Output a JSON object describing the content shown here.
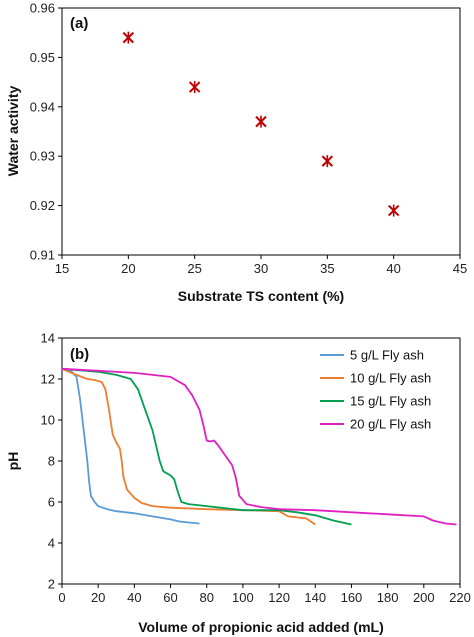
{
  "chart_data": [
    {
      "type": "scatter",
      "panel_label": "(a)",
      "xlabel": "Substrate TS content (%)",
      "ylabel": "Water activity",
      "xlim": [
        15,
        45
      ],
      "ylim": [
        0.91,
        0.96
      ],
      "xticks": [
        "15",
        "20",
        "25",
        "30",
        "35",
        "40",
        "45"
      ],
      "yticks": [
        "0.91",
        "0.92",
        "0.93",
        "0.94",
        "0.95",
        "0.96"
      ],
      "grid": false,
      "marker_color": "#c00000",
      "series": [
        {
          "points": [
            [
              20,
              0.954
            ],
            [
              25,
              0.944
            ],
            [
              30,
              0.937
            ],
            [
              35,
              0.929
            ],
            [
              40,
              0.919
            ]
          ]
        }
      ]
    },
    {
      "type": "line",
      "panel_label": "(b)",
      "xlabel": "Volume of propionic acid added (mL)",
      "ylabel": "pH",
      "xlim": [
        0,
        220
      ],
      "ylim": [
        2,
        14
      ],
      "xticks": [
        "0",
        "20",
        "40",
        "60",
        "80",
        "100",
        "120",
        "140",
        "160",
        "180",
        "200",
        "220"
      ],
      "yticks": [
        "2",
        "4",
        "6",
        "8",
        "10",
        "12",
        "14"
      ],
      "grid": false,
      "legend_position": "top-right",
      "series": [
        {
          "name": "5 g/L Fly ash",
          "color": "#5b9bd5",
          "points": [
            [
              0,
              12.5
            ],
            [
              5,
              12.4
            ],
            [
              8,
              12.1
            ],
            [
              10,
              11.0
            ],
            [
              12,
              9.5
            ],
            [
              14,
              8.0
            ],
            [
              15,
              7.0
            ],
            [
              16,
              6.3
            ],
            [
              18,
              6.0
            ],
            [
              20,
              5.8
            ],
            [
              25,
              5.65
            ],
            [
              30,
              5.55
            ],
            [
              40,
              5.45
            ],
            [
              50,
              5.3
            ],
            [
              60,
              5.15
            ],
            [
              65,
              5.05
            ],
            [
              70,
              5.0
            ],
            [
              76,
              4.95
            ]
          ]
        },
        {
          "name": "10 g/L Fly ash",
          "color": "#ed7d31",
          "points": [
            [
              0,
              12.5
            ],
            [
              8,
              12.2
            ],
            [
              14,
              12.0
            ],
            [
              18,
              11.95
            ],
            [
              22,
              11.85
            ],
            [
              24,
              11.5
            ],
            [
              26,
              10.5
            ],
            [
              28,
              9.3
            ],
            [
              30,
              8.9
            ],
            [
              32,
              8.6
            ],
            [
              33,
              8.0
            ],
            [
              34,
              7.2
            ],
            [
              36,
              6.6
            ],
            [
              40,
              6.2
            ],
            [
              44,
              5.95
            ],
            [
              50,
              5.8
            ],
            [
              60,
              5.72
            ],
            [
              80,
              5.65
            ],
            [
              100,
              5.6
            ],
            [
              120,
              5.55
            ],
            [
              125,
              5.3
            ],
            [
              130,
              5.25
            ],
            [
              135,
              5.2
            ],
            [
              140,
              4.9
            ]
          ]
        },
        {
          "name": "15 g/L Fly ash",
          "color": "#00a050",
          "points": [
            [
              0,
              12.5
            ],
            [
              20,
              12.35
            ],
            [
              30,
              12.2
            ],
            [
              38,
              12.0
            ],
            [
              42,
              11.5
            ],
            [
              46,
              10.5
            ],
            [
              50,
              9.5
            ],
            [
              54,
              8.0
            ],
            [
              56,
              7.5
            ],
            [
              60,
              7.3
            ],
            [
              62,
              7.1
            ],
            [
              64,
              6.5
            ],
            [
              66,
              6.0
            ],
            [
              70,
              5.9
            ],
            [
              80,
              5.8
            ],
            [
              100,
              5.6
            ],
            [
              120,
              5.6
            ],
            [
              130,
              5.5
            ],
            [
              140,
              5.35
            ],
            [
              150,
              5.1
            ],
            [
              155,
              5.0
            ],
            [
              160,
              4.9
            ]
          ]
        },
        {
          "name": "20 g/L Fly ash",
          "color": "#e020c0",
          "points": [
            [
              0,
              12.5
            ],
            [
              20,
              12.4
            ],
            [
              40,
              12.3
            ],
            [
              50,
              12.2
            ],
            [
              60,
              12.1
            ],
            [
              68,
              11.7
            ],
            [
              72,
              11.2
            ],
            [
              76,
              10.5
            ],
            [
              78,
              9.8
            ],
            [
              80,
              9.0
            ],
            [
              82,
              8.95
            ],
            [
              84,
              9.0
            ],
            [
              86,
              8.8
            ],
            [
              90,
              8.3
            ],
            [
              94,
              7.8
            ],
            [
              96,
              7.2
            ],
            [
              98,
              6.3
            ],
            [
              102,
              5.9
            ],
            [
              110,
              5.75
            ],
            [
              120,
              5.65
            ],
            [
              140,
              5.6
            ],
            [
              160,
              5.5
            ],
            [
              180,
              5.4
            ],
            [
              200,
              5.3
            ],
            [
              205,
              5.1
            ],
            [
              212,
              4.95
            ],
            [
              218,
              4.9
            ]
          ]
        }
      ]
    }
  ]
}
